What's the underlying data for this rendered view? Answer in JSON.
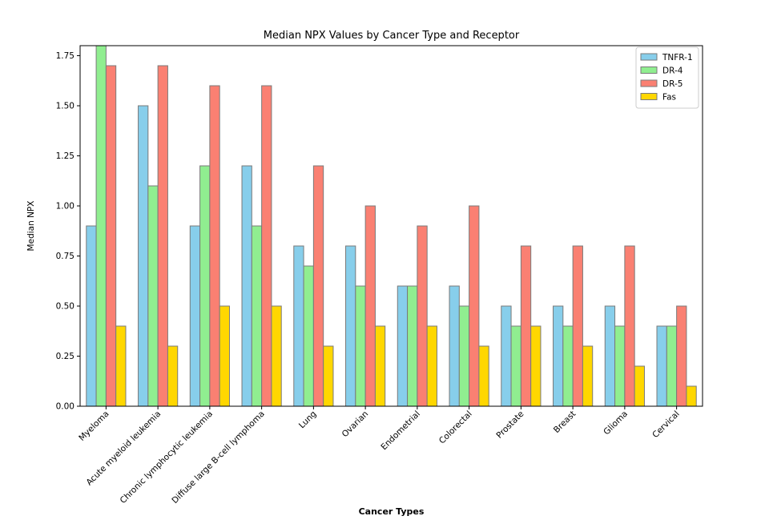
{
  "chart_data": {
    "type": "bar",
    "title": "Median NPX Values by Cancer Type and Receptor",
    "xlabel": "Cancer Types",
    "ylabel": "Median NPX",
    "ylim": [
      0,
      1.8
    ],
    "yticks": [
      "0.00",
      "0.25",
      "0.50",
      "0.75",
      "1.00",
      "1.25",
      "1.50",
      "1.75"
    ],
    "categories": [
      "Myeloma",
      "Acute myeloid leukemia",
      "Chronic lymphocytic leukemia",
      "Diffuse large B-cell lymphoma",
      "Lung",
      "Ovarian",
      "Endometrial",
      "Colorectal",
      "Prostate",
      "Breast",
      "Glioma",
      "Cervical"
    ],
    "series": [
      {
        "name": "TNFR-1",
        "color": "#87CEEB",
        "values": [
          0.9,
          1.5,
          0.9,
          1.2,
          0.8,
          0.8,
          0.6,
          0.6,
          0.5,
          0.5,
          0.5,
          0.4
        ]
      },
      {
        "name": "DR-4",
        "color": "#90EE90",
        "values": [
          1.8,
          1.1,
          1.2,
          0.9,
          0.7,
          0.6,
          0.6,
          0.5,
          0.4,
          0.4,
          0.4,
          0.4
        ]
      },
      {
        "name": "DR-5",
        "color": "#FA8072",
        "values": [
          1.7,
          1.7,
          1.6,
          1.6,
          1.2,
          1.0,
          0.9,
          1.0,
          0.8,
          0.8,
          0.8,
          0.5
        ]
      },
      {
        "name": "Fas",
        "color": "#FFD700",
        "values": [
          0.4,
          0.3,
          0.5,
          0.5,
          0.3,
          0.4,
          0.4,
          0.3,
          0.4,
          0.3,
          0.2,
          0.1
        ]
      }
    ],
    "grid": false,
    "legend_position": "top-right"
  }
}
